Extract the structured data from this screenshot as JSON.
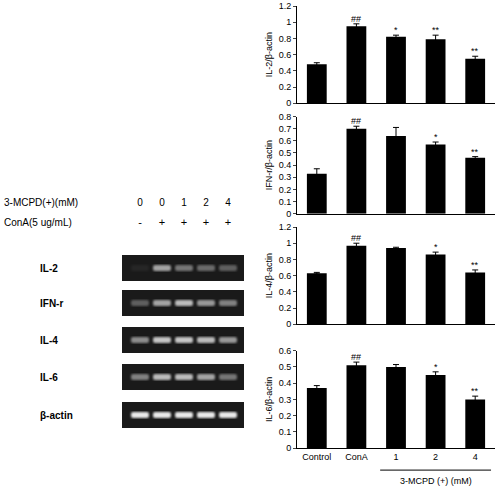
{
  "gel": {
    "treatment_label": "3-MCPD(+)(mM)",
    "treatment_values": [
      "0",
      "0",
      "1",
      "2",
      "4"
    ],
    "stimulus_label": "ConA(5 ug/mL)",
    "stimulus_signs": [
      "-",
      "+",
      "+",
      "+",
      "+"
    ],
    "rows": [
      {
        "label": "IL-2",
        "bands": [
          0.05,
          0.6,
          0.4,
          0.35,
          0.3
        ]
      },
      {
        "label": "IFN-r",
        "bands": [
          0.3,
          0.6,
          0.7,
          0.55,
          0.45
        ]
      },
      {
        "label": "IL-4",
        "bands": [
          0.5,
          0.75,
          0.75,
          0.7,
          0.55
        ]
      },
      {
        "label": "IL-6",
        "bands": [
          0.45,
          0.7,
          0.7,
          0.6,
          0.4
        ]
      },
      {
        "label": "β-actin",
        "bands": [
          0.9,
          0.9,
          0.9,
          0.9,
          0.9
        ]
      }
    ]
  },
  "chart_data": [
    {
      "type": "bar",
      "y_label": "IL-2/β-actin",
      "categories": [
        "Control",
        "ConA",
        "1",
        "2",
        "4"
      ],
      "values": [
        0.48,
        0.95,
        0.82,
        0.79,
        0.55
      ],
      "errors": [
        0.02,
        0.03,
        0.02,
        0.05,
        0.03
      ],
      "significance": [
        null,
        "##",
        "*",
        "**",
        "**"
      ],
      "color": "#000000",
      "ylim": [
        0,
        1.2
      ],
      "yticks": [
        0,
        0.2,
        0.4,
        0.6,
        0.8,
        1,
        1.2
      ],
      "grid": false,
      "tick_labels": "y"
    },
    {
      "type": "bar",
      "y_label": "IFN-r/β-actin",
      "categories": [
        "Control",
        "ConA",
        "1",
        "2",
        "4"
      ],
      "values": [
        0.33,
        0.7,
        0.64,
        0.57,
        0.46
      ],
      "errors": [
        0.04,
        0.02,
        0.07,
        0.02,
        0.01
      ],
      "significance": [
        null,
        "##",
        null,
        "*",
        "**"
      ],
      "color": "#000000",
      "ylim": [
        0,
        0.8
      ],
      "yticks": [
        0,
        0.1,
        0.2,
        0.3,
        0.4,
        0.5,
        0.6,
        0.7,
        0.8
      ],
      "grid": false,
      "tick_labels": "y"
    },
    {
      "type": "bar",
      "y_label": "IL-4/β-actin",
      "categories": [
        "Control",
        "ConA",
        "1",
        "2",
        "4"
      ],
      "values": [
        0.63,
        0.97,
        0.94,
        0.86,
        0.64
      ],
      "errors": [
        0.01,
        0.03,
        0.01,
        0.03,
        0.03
      ],
      "significance": [
        null,
        "##",
        null,
        "*",
        "**"
      ],
      "color": "#000000",
      "ylim": [
        0,
        1.2
      ],
      "yticks": [
        0,
        0.2,
        0.4,
        0.6,
        0.8,
        1,
        1.2
      ],
      "grid": false,
      "tick_labels": "y"
    },
    {
      "type": "bar",
      "y_label": "IL-6/β-actin",
      "categories": [
        "Control",
        "ConA",
        "1",
        "2",
        "4"
      ],
      "values": [
        0.37,
        0.51,
        0.5,
        0.45,
        0.3
      ],
      "errors": [
        0.015,
        0.02,
        0.015,
        0.02,
        0.02
      ],
      "significance": [
        null,
        "##",
        null,
        "*",
        "**"
      ],
      "color": "#000000",
      "ylim": [
        0,
        0.6
      ],
      "yticks": [
        0,
        0.1,
        0.2,
        0.3,
        0.4,
        0.5,
        0.6
      ],
      "grid": false,
      "x_group_label": "3-MCPD (+) (mM)"
    }
  ]
}
